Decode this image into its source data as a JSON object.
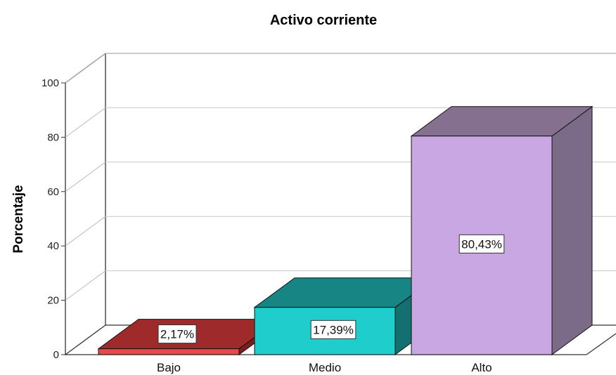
{
  "chart_data": {
    "type": "bar",
    "title": "Activo corriente",
    "ylabel": "Porcentaje",
    "xlabel": "",
    "categories": [
      "Bajo",
      "Medio",
      "Alto"
    ],
    "values": [
      2.17,
      17.39,
      80.43
    ],
    "data_labels": [
      "2,17%",
      "17,39%",
      "80,43%"
    ],
    "yticks": [
      "0",
      "20",
      "40",
      "60",
      "80",
      "100"
    ],
    "ylim": [
      0,
      100
    ],
    "grid": true,
    "style": "3d",
    "colors": [
      {
        "front": "#e8474b",
        "top": "#9e2a2b",
        "side": "#7a1f21"
      },
      {
        "front": "#1fcdcd",
        "top": "#178584",
        "side": "#127170"
      },
      {
        "front": "#c9a7e3",
        "top": "#86708f",
        "side": "#7c6a89"
      }
    ]
  }
}
